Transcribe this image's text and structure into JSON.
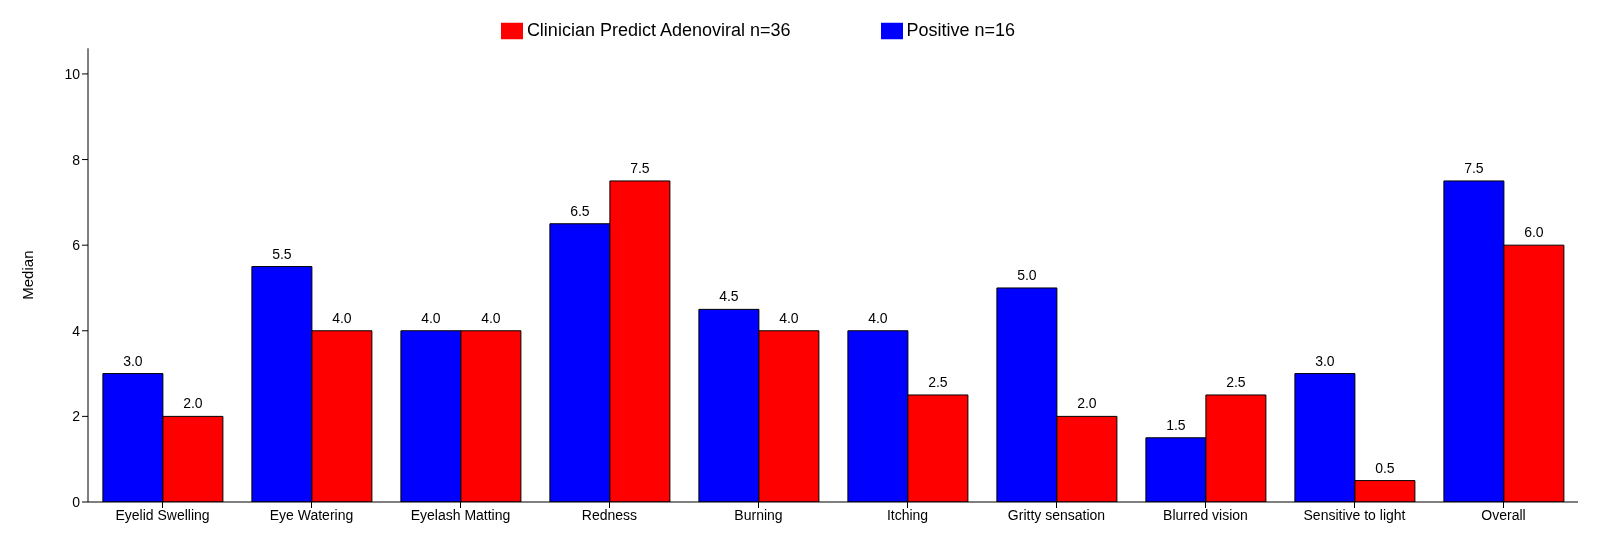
{
  "chart_data": {
    "type": "bar",
    "ylabel": "Median",
    "categories": [
      "Eyelid Swelling",
      "Eye Watering",
      "Eyelash Matting",
      "Redness",
      "Burning",
      "Itching",
      "Gritty sensation",
      "Blurred vision",
      "Sensitive to light",
      "Overall"
    ],
    "series": [
      {
        "name": "Positive n=16",
        "color": "#0000ff",
        "values": [
          3,
          5.5,
          4,
          6.5,
          4.5,
          4,
          5,
          1.5,
          3,
          7.5
        ],
        "value_labels": [
          "3.0",
          "5.5",
          "4.0",
          "6.5",
          "4.5",
          "4.0",
          "5.0",
          "1.5",
          "3.0",
          "7.5"
        ]
      },
      {
        "name": "Clinician Predict Adenoviral n=36",
        "color": "#ff0000",
        "values": [
          2,
          4,
          4,
          7.5,
          4,
          2.5,
          2,
          2.5,
          0.5,
          6
        ],
        "value_labels": [
          "2.0",
          "4.0",
          "4.0",
          "7.5",
          "4.0",
          "2.5",
          "2.0",
          "2.5",
          "0.5",
          "6.0"
        ]
      }
    ],
    "ylim": [
      0,
      10.6
    ],
    "yticks": [
      0,
      2,
      4,
      6,
      8,
      10
    ],
    "grid": false,
    "legend": "top"
  }
}
